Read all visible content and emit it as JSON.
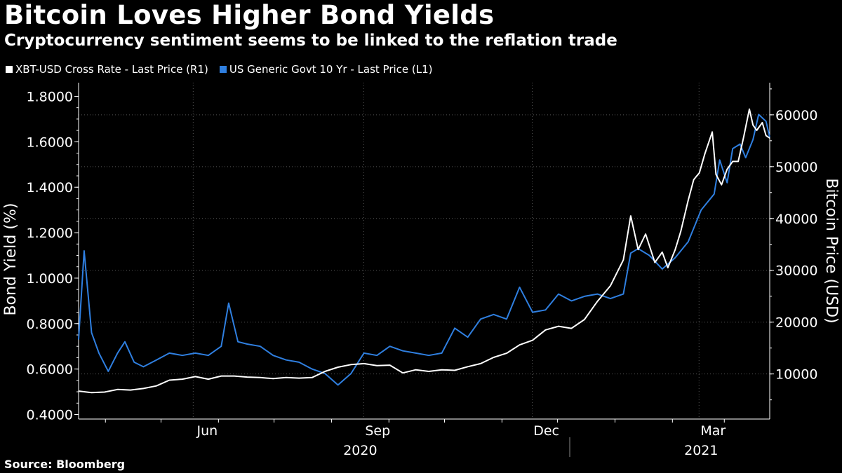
{
  "title": "Bitcoin Loves Higher Bond Yields",
  "subtitle": "Cryptocurrency sentiment seems to be linked to the reflation trade",
  "source": "Source: Bloomberg",
  "colors": {
    "background": "#000000",
    "bitcoin": "#ffffff",
    "bond": "#2f7fe0",
    "grid": "#555555"
  },
  "chart_data": {
    "type": "line",
    "legend_position": "top-left",
    "grid": true,
    "x_range": [
      "2020-03-16",
      "2021-03-24"
    ],
    "x_ticks": [
      {
        "label": "Jun",
        "date": "2020-06-01"
      },
      {
        "label": "Sep",
        "date": "2020-09-01"
      },
      {
        "label": "Dec",
        "date": "2020-12-01"
      },
      {
        "label": "Mar",
        "date": "2021-03-01"
      }
    ],
    "year_labels": [
      {
        "label": "2020",
        "date": "2020-08-15"
      },
      {
        "label": "2021",
        "date": "2021-02-15"
      }
    ],
    "left_axis": {
      "label": "Bond Yield (%)",
      "range": [
        0.38,
        1.86
      ],
      "ticks": [
        0.4,
        0.6,
        0.8,
        1.0,
        1.2,
        1.4,
        1.6,
        1.8
      ],
      "tick_labels": [
        "0.4000",
        "0.6000",
        "0.8000",
        "1.0000",
        "1.2000",
        "1.4000",
        "1.6000",
        "1.8000"
      ]
    },
    "right_axis": {
      "label": "Bitcoin Price (USD)",
      "range": [
        1300,
        66200
      ],
      "ticks": [
        10000,
        20000,
        30000,
        40000,
        50000,
        60000
      ],
      "tick_labels": [
        "10000",
        "20000",
        "30000",
        "40000",
        "50000",
        "60000"
      ]
    },
    "series": [
      {
        "name": "XBT-USD Cross Rate - Last Price (R1)",
        "axis": "right",
        "points": [
          [
            "2020-03-16",
            6700
          ],
          [
            "2020-03-23",
            6400
          ],
          [
            "2020-03-30",
            6500
          ],
          [
            "2020-04-06",
            7000
          ],
          [
            "2020-04-13",
            6900
          ],
          [
            "2020-04-20",
            7200
          ],
          [
            "2020-04-27",
            7700
          ],
          [
            "2020-05-04",
            8800
          ],
          [
            "2020-05-11",
            9000
          ],
          [
            "2020-05-18",
            9500
          ],
          [
            "2020-05-25",
            9000
          ],
          [
            "2020-06-01",
            9600
          ],
          [
            "2020-06-08",
            9600
          ],
          [
            "2020-06-15",
            9400
          ],
          [
            "2020-06-22",
            9300
          ],
          [
            "2020-06-29",
            9100
          ],
          [
            "2020-07-06",
            9300
          ],
          [
            "2020-07-13",
            9200
          ],
          [
            "2020-07-20",
            9300
          ],
          [
            "2020-07-27",
            10500
          ],
          [
            "2020-08-03",
            11300
          ],
          [
            "2020-08-10",
            11800
          ],
          [
            "2020-08-17",
            12000
          ],
          [
            "2020-08-24",
            11600
          ],
          [
            "2020-08-31",
            11700
          ],
          [
            "2020-09-07",
            10200
          ],
          [
            "2020-09-14",
            10800
          ],
          [
            "2020-09-21",
            10500
          ],
          [
            "2020-09-28",
            10800
          ],
          [
            "2020-10-05",
            10700
          ],
          [
            "2020-10-12",
            11400
          ],
          [
            "2020-10-19",
            12000
          ],
          [
            "2020-10-26",
            13200
          ],
          [
            "2020-11-02",
            14000
          ],
          [
            "2020-11-09",
            15600
          ],
          [
            "2020-11-16",
            16500
          ],
          [
            "2020-11-23",
            18500
          ],
          [
            "2020-11-30",
            19200
          ],
          [
            "2020-12-07",
            18800
          ],
          [
            "2020-12-14",
            20500
          ],
          [
            "2020-12-21",
            24000
          ],
          [
            "2020-12-28",
            27000
          ],
          [
            "2021-01-04",
            32000
          ],
          [
            "2021-01-08",
            40500
          ],
          [
            "2021-01-12",
            34000
          ],
          [
            "2021-01-16",
            37000
          ],
          [
            "2021-01-21",
            31500
          ],
          [
            "2021-01-25",
            33500
          ],
          [
            "2021-01-28",
            30500
          ],
          [
            "2021-02-01",
            34000
          ],
          [
            "2021-02-04",
            37500
          ],
          [
            "2021-02-08",
            43500
          ],
          [
            "2021-02-11",
            47500
          ],
          [
            "2021-02-14",
            48800
          ],
          [
            "2021-02-17",
            52500
          ],
          [
            "2021-02-21",
            56700
          ],
          [
            "2021-02-23",
            48500
          ],
          [
            "2021-02-26",
            46500
          ],
          [
            "2021-03-01",
            49500
          ],
          [
            "2021-03-04",
            51000
          ],
          [
            "2021-03-07",
            51000
          ],
          [
            "2021-03-10",
            55800
          ],
          [
            "2021-03-13",
            61100
          ],
          [
            "2021-03-15",
            58000
          ],
          [
            "2021-03-17",
            57000
          ],
          [
            "2021-03-20",
            58500
          ],
          [
            "2021-03-22",
            56000
          ],
          [
            "2021-03-24",
            55500
          ]
        ]
      },
      {
        "name": "US Generic Govt 10 Yr - Last Price (L1)",
        "axis": "left",
        "points": [
          [
            "2020-03-16",
            0.73
          ],
          [
            "2020-03-19",
            1.12
          ],
          [
            "2020-03-23",
            0.76
          ],
          [
            "2020-03-27",
            0.67
          ],
          [
            "2020-04-01",
            0.59
          ],
          [
            "2020-04-06",
            0.67
          ],
          [
            "2020-04-10",
            0.72
          ],
          [
            "2020-04-15",
            0.63
          ],
          [
            "2020-04-20",
            0.61
          ],
          [
            "2020-04-27",
            0.64
          ],
          [
            "2020-05-04",
            0.67
          ],
          [
            "2020-05-11",
            0.66
          ],
          [
            "2020-05-18",
            0.67
          ],
          [
            "2020-05-25",
            0.66
          ],
          [
            "2020-06-01",
            0.7
          ],
          [
            "2020-06-05",
            0.89
          ],
          [
            "2020-06-10",
            0.72
          ],
          [
            "2020-06-15",
            0.71
          ],
          [
            "2020-06-22",
            0.7
          ],
          [
            "2020-06-29",
            0.66
          ],
          [
            "2020-07-06",
            0.64
          ],
          [
            "2020-07-13",
            0.63
          ],
          [
            "2020-07-20",
            0.6
          ],
          [
            "2020-07-27",
            0.58
          ],
          [
            "2020-08-03",
            0.53
          ],
          [
            "2020-08-10",
            0.58
          ],
          [
            "2020-08-17",
            0.67
          ],
          [
            "2020-08-24",
            0.66
          ],
          [
            "2020-08-31",
            0.7
          ],
          [
            "2020-09-07",
            0.68
          ],
          [
            "2020-09-14",
            0.67
          ],
          [
            "2020-09-21",
            0.66
          ],
          [
            "2020-09-28",
            0.67
          ],
          [
            "2020-10-05",
            0.78
          ],
          [
            "2020-10-12",
            0.74
          ],
          [
            "2020-10-19",
            0.82
          ],
          [
            "2020-10-26",
            0.84
          ],
          [
            "2020-11-02",
            0.82
          ],
          [
            "2020-11-09",
            0.96
          ],
          [
            "2020-11-16",
            0.85
          ],
          [
            "2020-11-23",
            0.86
          ],
          [
            "2020-11-30",
            0.93
          ],
          [
            "2020-12-07",
            0.9
          ],
          [
            "2020-12-14",
            0.92
          ],
          [
            "2020-12-21",
            0.93
          ],
          [
            "2020-12-28",
            0.91
          ],
          [
            "2021-01-04",
            0.93
          ],
          [
            "2021-01-08",
            1.11
          ],
          [
            "2021-01-12",
            1.13
          ],
          [
            "2021-01-18",
            1.1
          ],
          [
            "2021-01-25",
            1.04
          ],
          [
            "2021-02-01",
            1.09
          ],
          [
            "2021-02-08",
            1.16
          ],
          [
            "2021-02-15",
            1.3
          ],
          [
            "2021-02-22",
            1.37
          ],
          [
            "2021-02-25",
            1.52
          ],
          [
            "2021-03-01",
            1.42
          ],
          [
            "2021-03-04",
            1.57
          ],
          [
            "2021-03-08",
            1.59
          ],
          [
            "2021-03-11",
            1.53
          ],
          [
            "2021-03-15",
            1.61
          ],
          [
            "2021-03-18",
            1.72
          ],
          [
            "2021-03-22",
            1.69
          ],
          [
            "2021-03-24",
            1.62
          ]
        ]
      }
    ]
  }
}
